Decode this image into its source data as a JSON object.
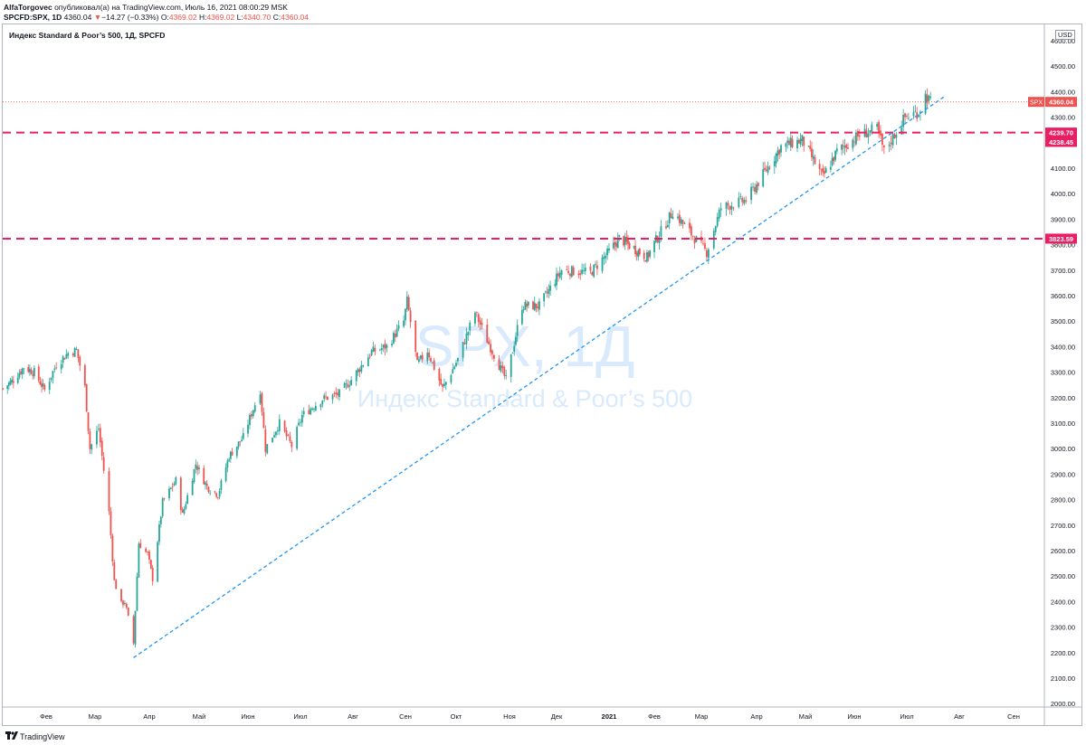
{
  "header": {
    "author": "AlfaTorgovec",
    "published_text": "опубликовал(а) на TradingView.com, Июль 16, 2021 08:00:29 MSK",
    "symbol": "SPCFD:SPX, 1D",
    "last": "4360.04",
    "change_arrow": "▼",
    "change": "−14.27 (−0.33%)",
    "o_label": "O:",
    "o_value": "4369.02",
    "h_label": "H:",
    "h_value": "4369.02",
    "l_label": "L:",
    "l_value": "4340.70",
    "c_label": "C:",
    "c_value": "4360.04"
  },
  "footer": {
    "brand": "TradingView"
  },
  "chart_data": {
    "type": "candlestick",
    "title": "Индекс Standard & Poor’s 500, 1Д, SPCFD",
    "currency": "USD",
    "watermark_symbol": "SPX, 1Д",
    "watermark_name": "Индекс Standard & Poor’s 500",
    "ylim": [
      1950,
      4650
    ],
    "y_ticks": [
      2000,
      2100,
      2200,
      2300,
      2400,
      2500,
      2600,
      2700,
      2800,
      2900,
      3000,
      3100,
      3200,
      3300,
      3400,
      3500,
      3600,
      3700,
      3800,
      3900,
      4000,
      4100,
      4200,
      4300,
      4400,
      4500,
      4600
    ],
    "y_tick_labels": [
      "2000.00",
      "2100.00",
      "2200.00",
      "2300.00",
      "2400.00",
      "2500.00",
      "2600.00",
      "2700.00",
      "2800.00",
      "2900.00",
      "3000.00",
      "3100.00",
      "3200.00",
      "3300.00",
      "3400.00",
      "3500.00",
      "3600.00",
      "3700.00",
      "3800.00",
      "3900.00",
      "4000.00",
      "4100.00",
      "4200.00",
      "4300.00",
      "4400.00",
      "4500.00",
      "4600.00"
    ],
    "x_ticks": [
      {
        "date": "2020-02-01",
        "label": "Фев"
      },
      {
        "date": "2020-03-01",
        "label": "Мар"
      },
      {
        "date": "2020-04-01",
        "label": "Апр"
      },
      {
        "date": "2020-05-01",
        "label": "Май"
      },
      {
        "date": "2020-06-01",
        "label": "Июн"
      },
      {
        "date": "2020-07-01",
        "label": "Июл"
      },
      {
        "date": "2020-08-01",
        "label": "Авг"
      },
      {
        "date": "2020-09-01",
        "label": "Сен"
      },
      {
        "date": "2020-10-01",
        "label": "Окт"
      },
      {
        "date": "2020-11-01",
        "label": "Ноя"
      },
      {
        "date": "2020-12-01",
        "label": "Дек"
      },
      {
        "date": "2021-01-01",
        "label": "2021"
      },
      {
        "date": "2021-02-01",
        "label": "Фев"
      },
      {
        "date": "2021-03-01",
        "label": "Мар"
      },
      {
        "date": "2021-04-01",
        "label": "Апр"
      },
      {
        "date": "2021-05-01",
        "label": "Май"
      },
      {
        "date": "2021-06-01",
        "label": "Июн"
      },
      {
        "date": "2021-07-01",
        "label": "Июл"
      },
      {
        "date": "2021-08-01",
        "label": "Авг"
      },
      {
        "date": "2021-09-01",
        "label": "Сен"
      }
    ],
    "price_path": [
      [
        "2020-01-03",
        3235
      ],
      [
        "2020-01-10",
        3270
      ],
      [
        "2020-01-17",
        3320
      ],
      [
        "2020-01-24",
        3300
      ],
      [
        "2020-01-31",
        3230
      ],
      [
        "2020-02-07",
        3330
      ],
      [
        "2020-02-14",
        3375
      ],
      [
        "2020-02-19",
        3386
      ],
      [
        "2020-02-24",
        3240
      ],
      [
        "2020-02-27",
        3000
      ],
      [
        "2020-03-03",
        3080
      ],
      [
        "2020-03-09",
        2750
      ],
      [
        "2020-03-12",
        2480
      ],
      [
        "2020-03-16",
        2390
      ],
      [
        "2020-03-18",
        2400
      ],
      [
        "2020-03-23",
        2237
      ],
      [
        "2020-03-26",
        2630
      ],
      [
        "2020-03-31",
        2585
      ],
      [
        "2020-04-03",
        2490
      ],
      [
        "2020-04-09",
        2790
      ],
      [
        "2020-04-17",
        2875
      ],
      [
        "2020-04-21",
        2740
      ],
      [
        "2020-04-29",
        2940
      ],
      [
        "2020-05-06",
        2850
      ],
      [
        "2020-05-13",
        2820
      ],
      [
        "2020-05-20",
        2970
      ],
      [
        "2020-05-29",
        3045
      ],
      [
        "2020-06-08",
        3230
      ],
      [
        "2020-06-11",
        3000
      ],
      [
        "2020-06-19",
        3100
      ],
      [
        "2020-06-26",
        3010
      ],
      [
        "2020-07-02",
        3130
      ],
      [
        "2020-07-14",
        3195
      ],
      [
        "2020-07-24",
        3215
      ],
      [
        "2020-07-31",
        3270
      ],
      [
        "2020-08-12",
        3380
      ],
      [
        "2020-08-21",
        3400
      ],
      [
        "2020-08-31",
        3500
      ],
      [
        "2020-09-02",
        3580
      ],
      [
        "2020-09-08",
        3330
      ],
      [
        "2020-09-14",
        3385
      ],
      [
        "2020-09-23",
        3235
      ],
      [
        "2020-10-02",
        3350
      ],
      [
        "2020-10-12",
        3535
      ],
      [
        "2020-10-19",
        3425
      ],
      [
        "2020-10-30",
        3270
      ],
      [
        "2020-11-09",
        3560
      ],
      [
        "2020-11-20",
        3560
      ],
      [
        "2020-12-04",
        3700
      ],
      [
        "2020-12-21",
        3690
      ],
      [
        "2021-01-08",
        3825
      ],
      [
        "2021-01-27",
        3750
      ],
      [
        "2021-02-12",
        3930
      ],
      [
        "2021-03-04",
        3770
      ],
      [
        "2021-03-12",
        3945
      ],
      [
        "2021-03-26",
        3975
      ],
      [
        "2021-04-16",
        4185
      ],
      [
        "2021-04-29",
        4210
      ],
      [
        "2021-05-12",
        4065
      ],
      [
        "2021-05-21",
        4165
      ],
      [
        "2021-06-04",
        4230
      ],
      [
        "2021-06-14",
        4255
      ],
      [
        "2021-06-18",
        4165
      ],
      [
        "2021-06-30",
        4300
      ],
      [
        "2021-07-08",
        4320
      ],
      [
        "2021-07-12",
        4385
      ],
      [
        "2021-07-15",
        4360
      ]
    ],
    "horizontal_levels": [
      {
        "value": 4239.7,
        "label": "4239.70",
        "style": "dashed",
        "color": "#e91e63"
      },
      {
        "value": 4238.45,
        "label": "4238.45",
        "style": "dashed",
        "color": "#e91e63"
      },
      {
        "value": 3823.59,
        "label": "3823.59",
        "style": "dashed",
        "color": "#e91e63"
      }
    ],
    "trendline": {
      "from": [
        "2020-03-23",
        2180
      ],
      "to": [
        "2021-07-23",
        4380
      ],
      "style": "dashed",
      "color": "#2196f3"
    },
    "last_price": {
      "symbol": "SPX",
      "value": 4360.04,
      "label": "4360.04",
      "color": "#ef5350"
    },
    "up_color": "#26a69a",
    "down_color": "#ef5350",
    "grid": false
  }
}
